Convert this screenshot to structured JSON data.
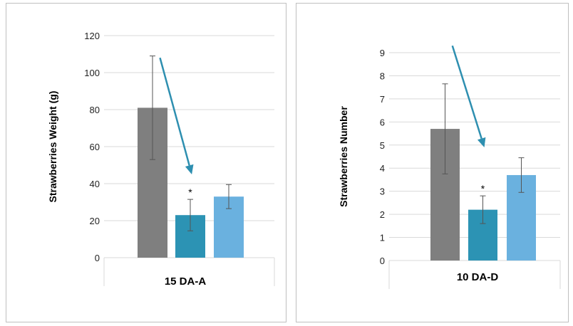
{
  "colors": {
    "control": "#7f7f7f",
    "treatment_1": "#2c93b4",
    "treatment_2": "#6ab1df",
    "arrow": "#2e8fb0",
    "grid": "#d9d9d9",
    "errorbar": "#555555"
  },
  "chart_data": [
    {
      "type": "bar",
      "title": "",
      "xlabel": "15 DA-A",
      "ylabel": "Strawberries Weight (g)",
      "ylim": [
        0,
        120
      ],
      "yticks": [
        "0",
        "20",
        "40",
        "60",
        "80",
        "100",
        "120"
      ],
      "grid": true,
      "values": [
        81,
        23,
        33
      ],
      "errors": [
        28,
        8.5,
        6.5
      ],
      "significance": [
        "",
        "*",
        ""
      ],
      "arrow": {
        "from_value": 108,
        "to_value": 45,
        "direction": "down to second bar"
      }
    },
    {
      "type": "bar",
      "title": "",
      "xlabel": "10 DA-D",
      "ylabel": "Strawberries Number",
      "ylim": [
        0,
        9
      ],
      "yticks": [
        "0",
        "1",
        "2",
        "3",
        "4",
        "5",
        "6",
        "7",
        "8",
        "9"
      ],
      "grid": true,
      "values": [
        5.7,
        2.2,
        3.7
      ],
      "errors": [
        1.95,
        0.6,
        0.75
      ],
      "significance": [
        "",
        "*",
        ""
      ],
      "arrow": {
        "from_value": 9.3,
        "to_value": 4.9,
        "direction": "down to second bar"
      }
    }
  ]
}
